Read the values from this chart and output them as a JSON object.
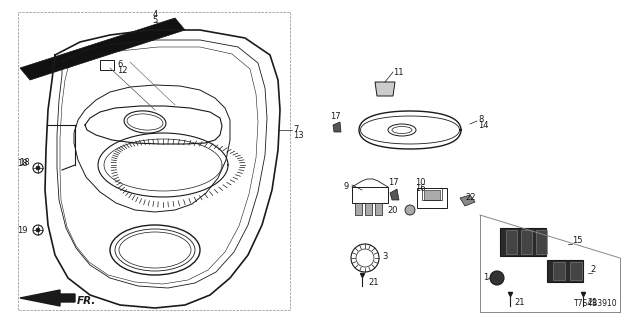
{
  "bg_color": "#ffffff",
  "diagram_code": "T7S4B3910",
  "fig_w": 6.4,
  "fig_h": 3.2,
  "xlim": [
    0,
    640
  ],
  "ylim": [
    0,
    320
  ]
}
